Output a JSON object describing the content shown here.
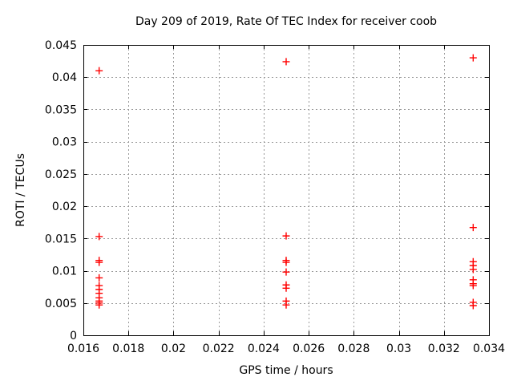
{
  "chart_data": {
    "type": "scatter",
    "title": "Day 209 of 2019, Rate Of TEC Index for receiver coob",
    "xlabel": "GPS time / hours",
    "ylabel": "ROTI / TECUs",
    "xlim": [
      0.016,
      0.034
    ],
    "ylim": [
      0,
      0.045
    ],
    "xtick_values": [
      0.016,
      0.018,
      0.02,
      0.022,
      0.024,
      0.026,
      0.028,
      0.03,
      0.032,
      0.034
    ],
    "xtick_labels": [
      "0.016",
      "0.018",
      "0.02",
      "0.022",
      "0.024",
      "0.026",
      "0.028",
      "0.03",
      "0.032",
      "0.034"
    ],
    "ytick_values": [
      0,
      0.005,
      0.01,
      0.015,
      0.02,
      0.025,
      0.03,
      0.035,
      0.04,
      0.045
    ],
    "ytick_labels": [
      "0",
      "0.005",
      "0.01",
      "0.015",
      "0.02",
      "0.025",
      "0.03",
      "0.035",
      "0.04",
      "0.045"
    ],
    "grid": true,
    "legend": "none",
    "marker": {
      "shape": "plus",
      "color": "#ff0000",
      "size": 9
    },
    "colors": {
      "marker": "#ff0000",
      "axis": "#000000",
      "grid": "#9a9a9a",
      "text": "#000000",
      "background": "#ffffff"
    },
    "series": [
      {
        "name": "ROTI",
        "points": [
          [
            0.0167,
            0.041
          ],
          [
            0.0167,
            0.0153
          ],
          [
            0.0167,
            0.0116
          ],
          [
            0.0167,
            0.0113
          ],
          [
            0.0167,
            0.0089
          ],
          [
            0.0167,
            0.0077
          ],
          [
            0.0167,
            0.0071
          ],
          [
            0.0167,
            0.0065
          ],
          [
            0.0167,
            0.0058
          ],
          [
            0.0167,
            0.0053
          ],
          [
            0.0167,
            0.005
          ],
          [
            0.0167,
            0.0047
          ],
          [
            0.025,
            0.0424
          ],
          [
            0.025,
            0.0154
          ],
          [
            0.025,
            0.0116
          ],
          [
            0.025,
            0.0113
          ],
          [
            0.025,
            0.0098
          ],
          [
            0.025,
            0.0078
          ],
          [
            0.025,
            0.0073
          ],
          [
            0.025,
            0.0053
          ],
          [
            0.025,
            0.0047
          ],
          [
            0.0333,
            0.043
          ],
          [
            0.0333,
            0.0167
          ],
          [
            0.0333,
            0.0114
          ],
          [
            0.0333,
            0.0108
          ],
          [
            0.0333,
            0.0102
          ],
          [
            0.0333,
            0.0086
          ],
          [
            0.0333,
            0.008
          ],
          [
            0.0333,
            0.0077
          ],
          [
            0.0333,
            0.0051
          ],
          [
            0.0333,
            0.0046
          ]
        ]
      }
    ]
  }
}
